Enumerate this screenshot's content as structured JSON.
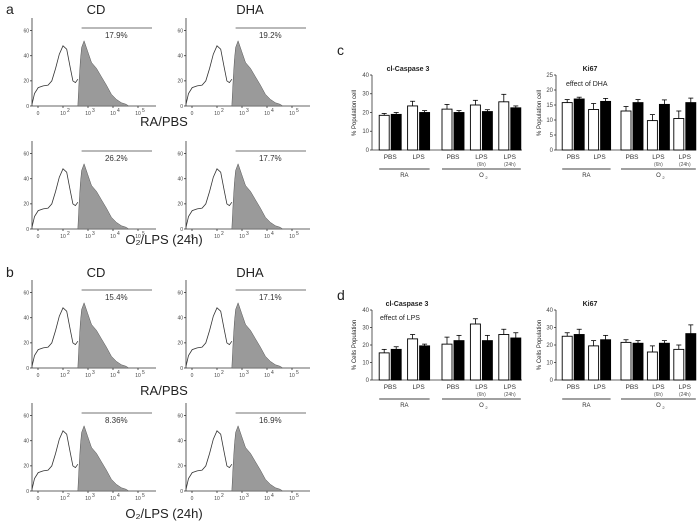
{
  "chart_data": {
    "type": "composite-figure",
    "panel_labels": [
      "a",
      "b",
      "c",
      "d"
    ],
    "histogram_panels": [
      {
        "panel": "a",
        "column_labels": [
          "CD",
          "DHA"
        ],
        "row_labels": [
          "RA/PBS",
          "O₂/LPS (24h)"
        ],
        "y_ticks": [
          0,
          20,
          40,
          60
        ],
        "x_tick_bases": [
          "0",
          "10",
          "10",
          "10",
          "10"
        ],
        "x_tick_exps": [
          "",
          "2",
          "3",
          "4",
          "5"
        ],
        "percentages": [
          [
            "17.9%",
            "19.2%"
          ],
          [
            "26.2%",
            "17.7%"
          ]
        ]
      },
      {
        "panel": "b",
        "column_labels": [
          "CD",
          "DHA"
        ],
        "row_labels": [
          "RA/PBS",
          "O₂/LPS (24h)"
        ],
        "y_ticks": [
          0,
          20,
          40,
          60
        ],
        "x_tick_bases": [
          "0",
          "10",
          "10",
          "10",
          "10"
        ],
        "x_tick_exps": [
          "",
          "2",
          "3",
          "4",
          "5"
        ],
        "percentages": [
          [
            "15.4%",
            "17.1%"
          ],
          [
            "8.36%",
            "16.9%"
          ]
        ]
      }
    ],
    "bar_charts": [
      {
        "panel": "c",
        "type": "bar",
        "title": "cl-Caspase 3",
        "ylabel": "% Population cell",
        "ylim": [
          0,
          40
        ],
        "y_ticks": [
          0,
          10,
          20,
          30,
          40
        ],
        "annotation": "",
        "series": [
          {
            "name": "CD",
            "values": [
              18.5,
              23.5,
              21.8,
              24.0,
              25.7
            ],
            "errors": [
              1.0,
              2.5,
              2.5,
              2.5,
              4.0
            ]
          },
          {
            "name": "DHA",
            "values": [
              19.0,
              20.0,
              20.0,
              20.5,
              22.5
            ],
            "errors": [
              1.0,
              1.0,
              1.0,
              1.0,
              1.0
            ]
          }
        ]
      },
      {
        "panel": "c",
        "type": "bar",
        "title": "Ki67",
        "ylabel": "% Population cell",
        "ylim": [
          0,
          25
        ],
        "y_ticks": [
          0,
          5,
          10,
          15,
          20,
          25
        ],
        "annotation": "effect of DHA",
        "series": [
          {
            "name": "CD",
            "values": [
              15.8,
              13.5,
              13.0,
              9.8,
              10.5
            ],
            "errors": [
              1.0,
              2.0,
              1.5,
              2.0,
              2.5
            ]
          },
          {
            "name": "DHA",
            "values": [
              17.0,
              16.2,
              15.8,
              15.2,
              15.8
            ],
            "errors": [
              0.6,
              1.0,
              1.0,
              1.5,
              1.5
            ]
          }
        ]
      },
      {
        "panel": "d",
        "type": "bar",
        "title": "cl-Caspase 3",
        "ylabel": "% Cells Population",
        "ylim": [
          0,
          40
        ],
        "y_ticks": [
          0,
          10,
          20,
          30,
          40
        ],
        "annotation": "effect of LPS",
        "series": [
          {
            "name": "CD",
            "values": [
              15.5,
              23.5,
              20.5,
              32.0,
              26.0
            ],
            "errors": [
              2.0,
              2.5,
              4.0,
              3.0,
              3.0
            ]
          },
          {
            "name": "DHA",
            "values": [
              17.5,
              19.5,
              22.5,
              22.5,
              24.0
            ],
            "errors": [
              1.5,
              1.0,
              3.0,
              3.0,
              3.0
            ]
          }
        ]
      },
      {
        "panel": "d",
        "type": "bar",
        "title": "Ki67",
        "ylabel": "% Cells Population",
        "ylim": [
          0,
          40
        ],
        "y_ticks": [
          0,
          10,
          20,
          30,
          40
        ],
        "annotation": "",
        "series": [
          {
            "name": "CD",
            "values": [
              25.0,
              19.5,
              21.5,
              16.0,
              17.5
            ],
            "errors": [
              2.0,
              3.0,
              1.5,
              3.5,
              2.5
            ]
          },
          {
            "name": "DHA",
            "values": [
              26.0,
              23.0,
              21.0,
              21.0,
              26.5
            ],
            "errors": [
              3.0,
              2.5,
              1.5,
              1.5,
              5.0
            ]
          }
        ]
      }
    ],
    "bar_categories": [
      {
        "label": "PBS",
        "sub": ""
      },
      {
        "label": "LPS",
        "sub": ""
      },
      {
        "label": "PBS",
        "sub": ""
      },
      {
        "label": "LPS",
        "sub": "(6h)"
      },
      {
        "label": "LPS",
        "sub": "(24h)"
      }
    ],
    "bar_groups": [
      {
        "label": "RA",
        "sub": "",
        "span": [
          0,
          1
        ]
      },
      {
        "label": "O",
        "sub": "2",
        "span": [
          2,
          4
        ]
      }
    ]
  }
}
